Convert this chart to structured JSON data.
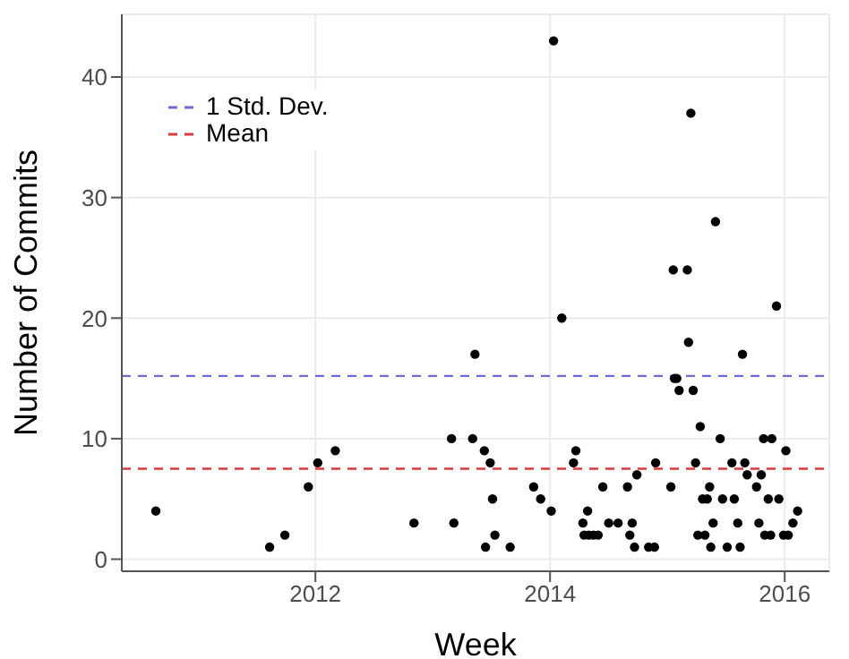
{
  "chart_data": {
    "type": "scatter",
    "xlabel": "Week",
    "ylabel": "Number of Commits",
    "x": [
      2010.64,
      2011.61,
      2011.74,
      2011.94,
      2012.02,
      2012.17,
      2012.84,
      2013.16,
      2013.18,
      2013.34,
      2013.36,
      2013.44,
      2013.45,
      2013.49,
      2013.51,
      2013.53,
      2013.66,
      2013.86,
      2013.92,
      2014.01,
      2014.03,
      2014.1,
      2014.2,
      2014.22,
      2014.28,
      2014.29,
      2014.32,
      2014.33,
      2014.37,
      2014.41,
      2014.45,
      2014.5,
      2014.58,
      2014.66,
      2014.68,
      2014.7,
      2014.72,
      2014.74,
      2014.84,
      2014.89,
      2014.9,
      2015.03,
      2015.05,
      2015.06,
      2015.08,
      2015.1,
      2015.17,
      2015.18,
      2015.2,
      2015.22,
      2015.24,
      2015.26,
      2015.28,
      2015.3,
      2015.32,
      2015.34,
      2015.36,
      2015.37,
      2015.39,
      2015.41,
      2015.45,
      2015.47,
      2015.51,
      2015.55,
      2015.57,
      2015.6,
      2015.62,
      2015.64,
      2015.66,
      2015.68,
      2015.76,
      2015.78,
      2015.8,
      2015.82,
      2015.83,
      2015.86,
      2015.88,
      2015.89,
      2015.93,
      2015.95,
      2015.99,
      2016.01,
      2016.03,
      2016.07,
      2016.11
    ],
    "values": [
      4,
      1,
      2,
      6,
      8,
      9,
      3,
      10,
      3,
      10,
      17,
      9,
      1,
      8,
      5,
      2,
      1,
      6,
      5,
      4,
      43,
      20,
      8,
      9,
      3,
      2,
      4,
      2,
      2,
      2,
      6,
      3,
      3,
      6,
      2,
      3,
      1,
      7,
      1,
      1,
      8,
      6,
      24,
      15,
      15,
      14,
      24,
      18,
      37,
      14,
      8,
      2,
      11,
      5,
      2,
      5,
      6,
      1,
      3,
      28,
      10,
      5,
      1,
      8,
      5,
      3,
      1,
      17,
      8,
      7,
      6,
      3,
      7,
      10,
      2,
      5,
      2,
      10,
      21,
      5,
      2,
      9,
      2,
      3,
      4
    ],
    "color": "#000000",
    "marker": "circle",
    "xlim": [
      2010.35,
      2016.38
    ],
    "xticks": [
      2012,
      2014,
      2016
    ],
    "ylim": [
      -1,
      45.2
    ],
    "yticks": [
      0,
      10,
      20,
      30,
      40
    ],
    "grid": true,
    "legend": "top left",
    "ref_lines": [
      {
        "axis": "y",
        "value": 15.2,
        "label": "1 Std. Dev.",
        "color": "#6b6bdf",
        "line_style": "dashed"
      },
      {
        "axis": "y",
        "value": 7.5,
        "label": "Mean",
        "color": "#e0383b",
        "line_style": "dashed"
      }
    ]
  }
}
